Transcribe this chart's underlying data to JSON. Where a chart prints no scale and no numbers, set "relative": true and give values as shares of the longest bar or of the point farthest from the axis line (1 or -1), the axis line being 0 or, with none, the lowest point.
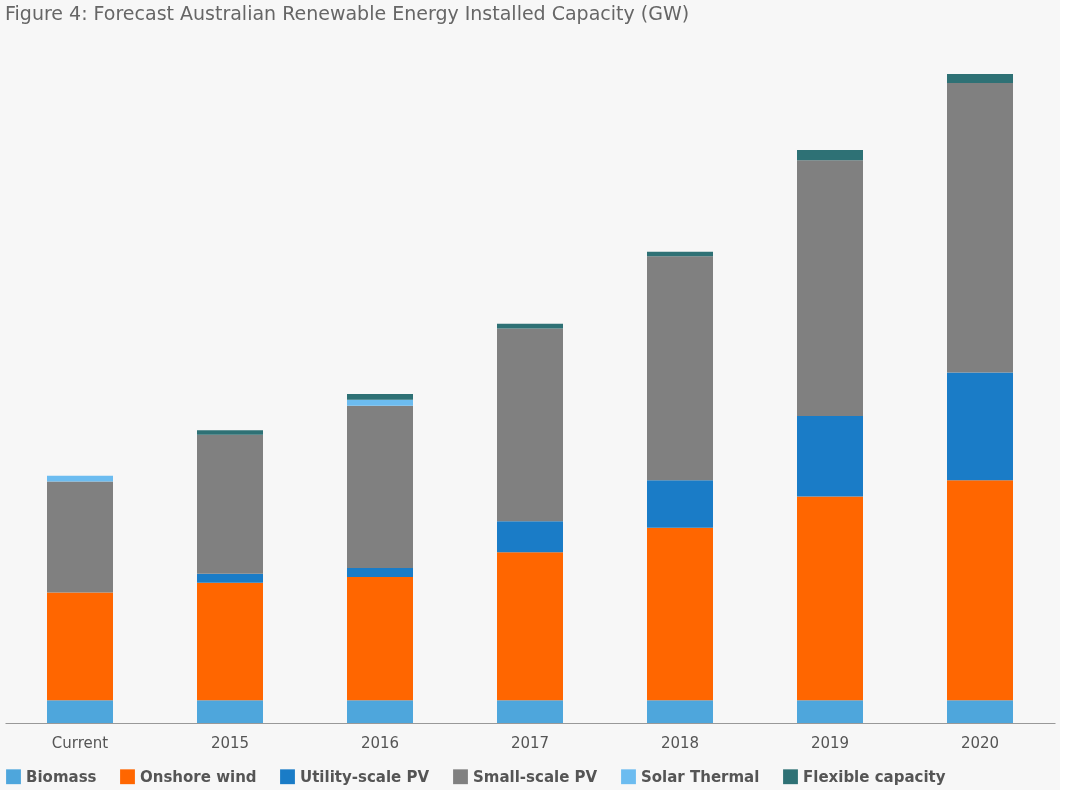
{
  "chart_data": {
    "type": "bar",
    "title": "Figure 4: Forecast Australian Renewable Energy Installed Capacity (GW)",
    "categories": [
      "Current",
      "2015",
      "2016",
      "2017",
      "2018",
      "2019",
      "2020"
    ],
    "relative": true,
    "stacked": true,
    "legend": "bottom",
    "series": [
      {
        "name": "Biomass",
        "color": "#4ea6dc",
        "values": [
          0.035,
          0.035,
          0.035,
          0.035,
          0.035,
          0.035,
          0.035
        ]
      },
      {
        "name": "Onshore wind",
        "color": "#ff6600",
        "values": [
          0.166,
          0.181,
          0.19,
          0.228,
          0.266,
          0.314,
          0.339
        ]
      },
      {
        "name": "Utility-scale PV",
        "color": "#1a7cc7",
        "values": [
          0,
          0.014,
          0.014,
          0.048,
          0.073,
          0.124,
          0.166
        ]
      },
      {
        "name": "Small-scale PV",
        "color": "#808080",
        "values": [
          0.171,
          0.214,
          0.25,
          0.297,
          0.345,
          0.394,
          0.446
        ]
      },
      {
        "name": "Solar Thermal",
        "color": "#6cbcf0",
        "values": [
          0.009,
          0,
          0.009,
          0,
          0,
          0,
          0
        ]
      },
      {
        "name": "Flexible capacity",
        "color": "#2e7175",
        "values": [
          0,
          0.007,
          0.009,
          0.007,
          0.007,
          0.016,
          0.014
        ]
      }
    ]
  }
}
